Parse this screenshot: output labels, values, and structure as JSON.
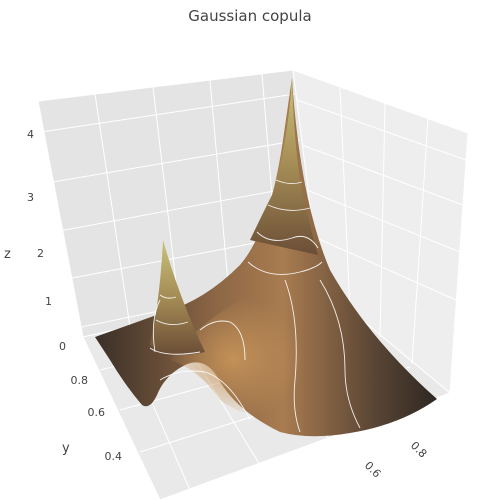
{
  "chart_data": {
    "type": "surface",
    "title": "Gaussian copula",
    "axes": {
      "x": {
        "label": "",
        "ticks": [
          0.6,
          0.8
        ]
      },
      "y": {
        "label": "y",
        "ticks": [
          0.4,
          0.6,
          0.8
        ]
      },
      "z": {
        "label": "z",
        "ticks": [
          0,
          1,
          2,
          3,
          4
        ]
      }
    },
    "surface": {
      "description_of_shape": "bivariate Gaussian copula density",
      "peaks": [
        {
          "x": 1.0,
          "y": 1.0,
          "z": 4.4
        },
        {
          "x": 0.0,
          "y": 0.0,
          "z": 4.4
        }
      ],
      "contour_levels": [
        0.5,
        1,
        1.5,
        2,
        2.5,
        3,
        3.5
      ],
      "contours": true,
      "colorscale": [
        "#2b2520",
        "#5c4636",
        "#8c6845",
        "#b98d55",
        "#c9b870",
        "#b9b870"
      ]
    },
    "grid": true,
    "background_color": "#e6e6e6"
  }
}
